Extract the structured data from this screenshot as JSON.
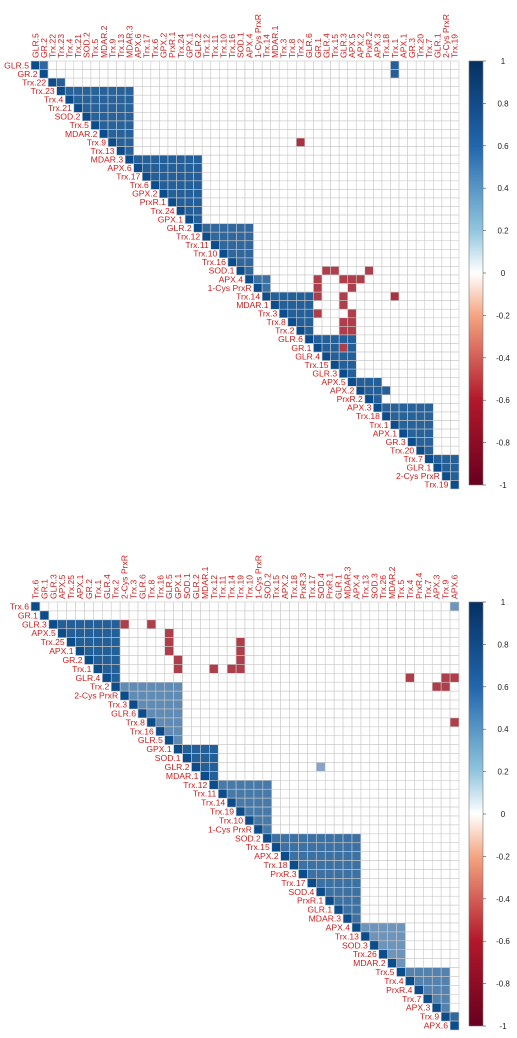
{
  "chart_data": [
    {
      "type": "heatmap",
      "variables": [
        "GLR.5",
        "GR.2",
        "Trx.22",
        "Trx.23",
        "Trx.4",
        "Trx.21",
        "SOD.2",
        "Trx.5",
        "MDAR.2",
        "Trx.9",
        "Trx.13",
        "MDAR.3",
        "APX.6",
        "Trx.17",
        "Trx.6",
        "GPX.2",
        "PrxR.1",
        "Trx.24",
        "GPX.1",
        "GLR.2",
        "Trx.12",
        "Trx.11",
        "Trx.10",
        "Trx.16",
        "SOD.1",
        "APX.4",
        "1-Cys PrxR",
        "Trx.14",
        "MDAR.1",
        "Trx.3",
        "Trx.8",
        "Trx.2",
        "GLR.6",
        "GR.1",
        "GLR.4",
        "Trx.15",
        "GLR.3",
        "APX.5",
        "APX.2",
        "PrxR.2",
        "APX.3",
        "Trx.18",
        "Trx.1",
        "APX.1",
        "GR.3",
        "Trx.20",
        "Trx.7",
        "GLR.1",
        "2-Cys PrxR",
        "Trx.19"
      ],
      "blocks": [
        {
          "rows": [
            0,
            1
          ],
          "value": 0.85
        },
        {
          "rows": [
            2,
            3
          ],
          "value": 0.9
        },
        {
          "rows": [
            3,
            11
          ],
          "value": 0.88
        },
        {
          "rows": [
            11,
            19
          ],
          "value": 0.9
        },
        {
          "rows": [
            19,
            25
          ],
          "value": 0.85
        },
        {
          "rows": [
            25,
            27
          ],
          "value": 0.8
        },
        {
          "rows": [
            27,
            32
          ],
          "value": 0.9
        },
        {
          "rows": [
            32,
            37
          ],
          "value": 0.9
        },
        {
          "rows": [
            37,
            40
          ],
          "value": 0.9
        },
        {
          "rows": [
            40,
            46
          ],
          "value": 0.88
        },
        {
          "rows": [
            46,
            49
          ],
          "value": 0.9
        }
      ],
      "cells": [
        {
          "pair": [
            0,
            42
          ],
          "value": 0.9
        },
        {
          "pair": [
            1,
            42
          ],
          "value": 0.9
        },
        {
          "pair": [
            9,
            31
          ],
          "value": -0.85
        },
        {
          "pair": [
            24,
            34
          ],
          "value": -0.8
        },
        {
          "pair": [
            24,
            35
          ],
          "value": -0.8
        },
        {
          "pair": [
            24,
            39
          ],
          "value": -0.8
        },
        {
          "pair": [
            25,
            33
          ],
          "value": -0.8
        },
        {
          "pair": [
            25,
            36
          ],
          "value": -0.8
        },
        {
          "pair": [
            25,
            37
          ],
          "value": -0.8
        },
        {
          "pair": [
            25,
            38
          ],
          "value": -0.8
        },
        {
          "pair": [
            26,
            33
          ],
          "value": -0.8
        },
        {
          "pair": [
            26,
            37
          ],
          "value": -0.8
        },
        {
          "pair": [
            27,
            33
          ],
          "value": -0.8
        },
        {
          "pair": [
            27,
            36
          ],
          "value": -0.8
        },
        {
          "pair": [
            27,
            42
          ],
          "value": -0.85
        },
        {
          "pair": [
            28,
            36
          ],
          "value": -0.8
        },
        {
          "pair": [
            29,
            33
          ],
          "value": -0.8
        },
        {
          "pair": [
            29,
            37
          ],
          "value": -0.8
        },
        {
          "pair": [
            30,
            36
          ],
          "value": -0.8
        },
        {
          "pair": [
            30,
            37
          ],
          "value": -0.8
        },
        {
          "pair": [
            31,
            36
          ],
          "value": -0.8
        },
        {
          "pair": [
            31,
            37
          ],
          "value": -0.8
        },
        {
          "pair": [
            33,
            36
          ],
          "value": -0.8
        },
        {
          "pair": [
            38,
            39
          ],
          "value": 0.9
        },
        {
          "pair": [
            38,
            40
          ],
          "value": 0.9
        },
        {
          "pair": [
            38,
            41
          ],
          "value": 0.9
        },
        {
          "pair": [
            20,
            22
          ],
          "value": 0.85
        },
        {
          "pair": [
            20,
            23
          ],
          "value": 0.85
        },
        {
          "pair": [
            22,
            25
          ],
          "value": 0.85
        }
      ],
      "colorbar": {
        "min": -1,
        "max": 1,
        "ticks": [
          "1",
          "0.8",
          "0.6",
          "0.4",
          "0.2",
          "0",
          "-0.2",
          "-0.4",
          "-0.6",
          "-0.8",
          "-1"
        ]
      },
      "colors": {
        "positive": "#0b4d8c",
        "negative": "#9b0e1e",
        "zero": "#ffffff"
      }
    },
    {
      "type": "heatmap",
      "variables": [
        "Trx.6",
        "GR.1",
        "GLR.3",
        "APX.5",
        "Trx.25",
        "APX.1",
        "GR.2",
        "Trx.1",
        "GLR.4",
        "Trx.2",
        "2-Cys PrxR",
        "Trx.3",
        "GLR.6",
        "Trx.8",
        "Trx.16",
        "GLR.5",
        "GPX.1",
        "SOD.1",
        "GLR.2",
        "MDAR.1",
        "Trx.12",
        "Trx.11",
        "Trx.14",
        "Trx.19",
        "Trx.10",
        "1-Cys PrxR",
        "SOD.2",
        "Trx.15",
        "APX.2",
        "Trx.18",
        "PrxR.3",
        "Trx.17",
        "SOD.4",
        "PrxR.1",
        "GLR.1",
        "MDAR.3",
        "APX.4",
        "Trx.13",
        "SOD.3",
        "Trx.26",
        "MDAR.2",
        "Trx.5",
        "Trx.4",
        "PrxR.4",
        "Trx.7",
        "APX.3",
        "Trx.9",
        "APX.6"
      ],
      "blocks": [
        {
          "rows": [
            2,
            9
          ],
          "value": 0.9
        },
        {
          "rows": [
            9,
            16
          ],
          "value": 0.65
        },
        {
          "rows": [
            16,
            20
          ],
          "value": 0.9
        },
        {
          "rows": [
            20,
            26
          ],
          "value": 0.75
        },
        {
          "rows": [
            26,
            36
          ],
          "value": 0.8
        },
        {
          "rows": [
            36,
            41
          ],
          "value": 0.6
        },
        {
          "rows": [
            41,
            46
          ],
          "value": 0.7
        },
        {
          "rows": [
            46,
            48
          ],
          "value": 0.85
        }
      ],
      "cells": [
        {
          "pair": [
            0,
            47
          ],
          "value": 0.6
        },
        {
          "pair": [
            2,
            10
          ],
          "value": -0.8
        },
        {
          "pair": [
            2,
            13
          ],
          "value": -0.8
        },
        {
          "pair": [
            3,
            15
          ],
          "value": -0.8
        },
        {
          "pair": [
            4,
            15
          ],
          "value": -0.8
        },
        {
          "pair": [
            5,
            15
          ],
          "value": -0.8
        },
        {
          "pair": [
            6,
            16
          ],
          "value": -0.8
        },
        {
          "pair": [
            7,
            16
          ],
          "value": -0.8
        },
        {
          "pair": [
            7,
            20
          ],
          "value": -0.8
        },
        {
          "pair": [
            7,
            22
          ],
          "value": -0.8
        },
        {
          "pair": [
            4,
            23
          ],
          "value": -0.8
        },
        {
          "pair": [
            5,
            23
          ],
          "value": -0.8
        },
        {
          "pair": [
            6,
            23
          ],
          "value": -0.8
        },
        {
          "pair": [
            7,
            23
          ],
          "value": -0.8
        },
        {
          "pair": [
            8,
            42
          ],
          "value": -0.8
        },
        {
          "pair": [
            8,
            46
          ],
          "value": -0.8
        },
        {
          "pair": [
            8,
            47
          ],
          "value": -0.8
        },
        {
          "pair": [
            9,
            45
          ],
          "value": -0.8
        },
        {
          "pair": [
            9,
            46
          ],
          "value": -0.8
        },
        {
          "pair": [
            13,
            47
          ],
          "value": -0.8
        },
        {
          "pair": [
            18,
            32
          ],
          "value": 0.5
        }
      ],
      "colorbar": {
        "min": -1,
        "max": 1,
        "ticks": [
          "1",
          "0.8",
          "0.6",
          "0.4",
          "0.2",
          "0",
          "-0.2",
          "-0.4",
          "-0.6",
          "-0.8",
          "-1"
        ]
      },
      "colors": {
        "positive": "#0b4d8c",
        "negative": "#9b0e1e",
        "zero": "#ffffff"
      }
    }
  ]
}
